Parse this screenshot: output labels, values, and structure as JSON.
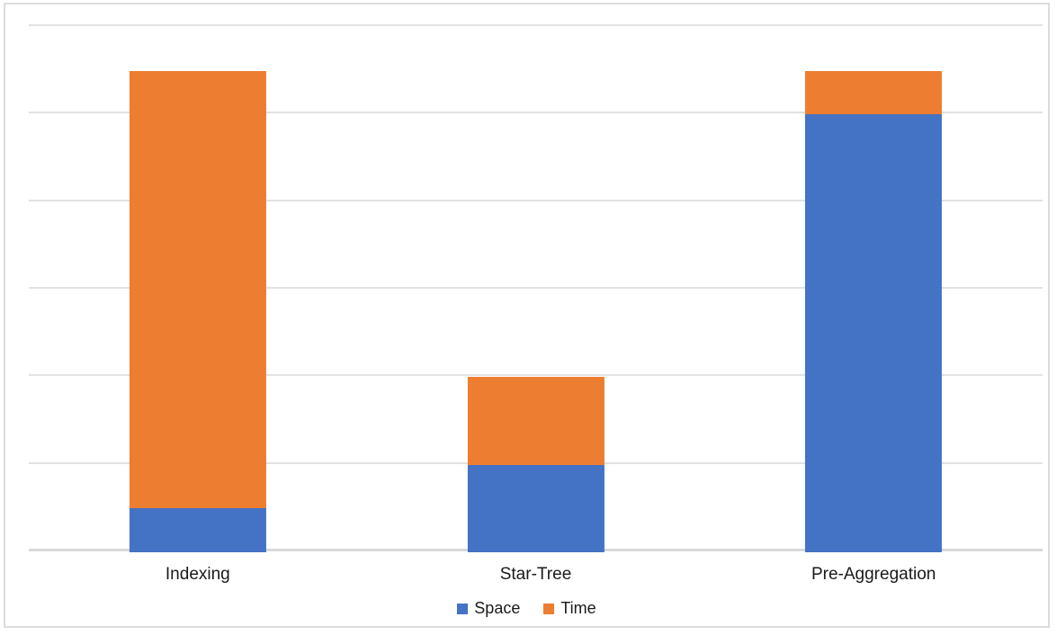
{
  "chart_data": {
    "type": "bar",
    "subtype": "stacked",
    "title": "",
    "xlabel": "",
    "ylabel": "",
    "categories": [
      "Indexing",
      "Star-Tree",
      "Pre-Aggregation"
    ],
    "series": [
      {
        "name": "Space",
        "color": "#4472C4",
        "values": [
          0.5,
          1,
          5
        ]
      },
      {
        "name": "Time",
        "color": "#ED7D31",
        "values": [
          5,
          1,
          0.5
        ]
      }
    ],
    "ylim": [
      0,
      6
    ],
    "grid_interval": 1,
    "grid": true,
    "y_tick_labels_visible": false,
    "legend_position": "bottom"
  },
  "colors": {
    "gridline": "#e2e2e2",
    "axis_line": "#d9d9d9",
    "frame_border": "#dcdcdc",
    "background": "#ffffff",
    "text": "#1a1a1a"
  }
}
